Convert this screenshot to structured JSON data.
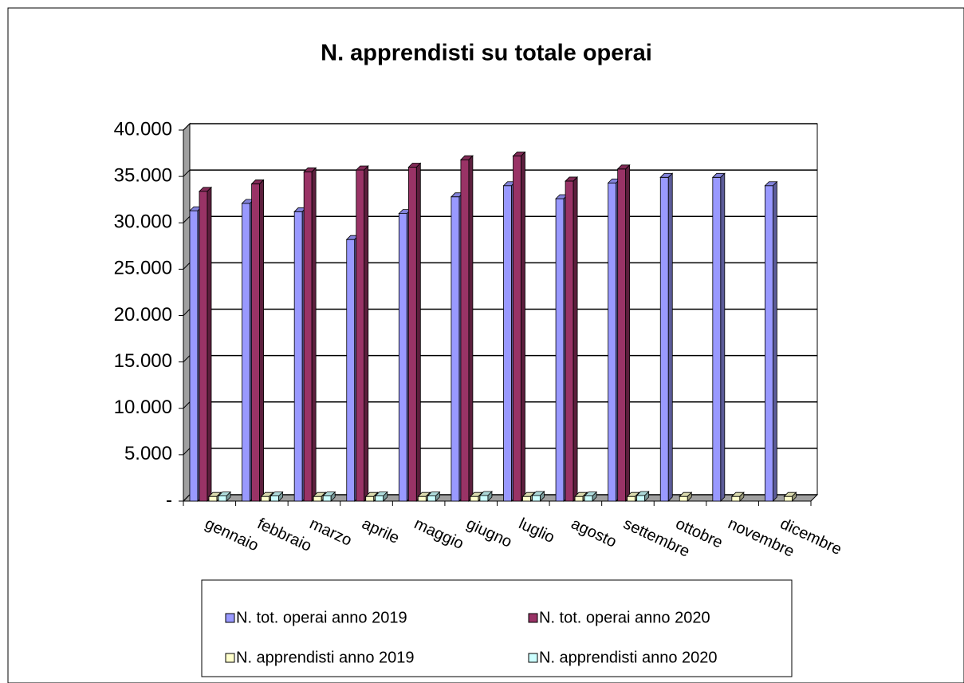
{
  "chart_data": {
    "type": "bar3d",
    "title": "N. apprendisti su totale operai",
    "categories": [
      "gennaio",
      "febbraio",
      "marzo",
      "aprile",
      "maggio",
      "giugno",
      "luglio",
      "agosto",
      "settembre",
      "ottobre",
      "novembre",
      "dicembre"
    ],
    "series": [
      {
        "name": "N. tot. operai anno 2019",
        "color": "#9999ff",
        "values": [
          31300,
          32100,
          31200,
          28200,
          31000,
          32800,
          34000,
          32600,
          34300,
          34900,
          34900,
          34000
        ]
      },
      {
        "name": "N. tot. operai anno 2020",
        "color": "#993366",
        "values": [
          33400,
          34200,
          35500,
          35700,
          36000,
          36800,
          37200,
          34500,
          35800,
          null,
          null,
          null
        ]
      },
      {
        "name": "N. apprendisti anno 2019",
        "color": "#ffffcc",
        "values": [
          500,
          500,
          500,
          500,
          500,
          500,
          500,
          500,
          500,
          500,
          500,
          500
        ]
      },
      {
        "name": "N. apprendisti anno 2020",
        "color": "#ccffff",
        "values": [
          550,
          550,
          550,
          550,
          550,
          600,
          600,
          550,
          600,
          null,
          null,
          null
        ]
      }
    ],
    "ylim": [
      0,
      40000
    ],
    "yticks": [
      {
        "value": 0,
        "label": "-"
      },
      {
        "value": 5000,
        "label": "5.000"
      },
      {
        "value": 10000,
        "label": "10.000"
      },
      {
        "value": 15000,
        "label": "15.000"
      },
      {
        "value": 20000,
        "label": "20.000"
      },
      {
        "value": 25000,
        "label": "25.000"
      },
      {
        "value": 30000,
        "label": "30.000"
      },
      {
        "value": 35000,
        "label": "35.000"
      },
      {
        "value": 40000,
        "label": "40.000"
      }
    ],
    "grid": true,
    "legend": "bottom"
  }
}
